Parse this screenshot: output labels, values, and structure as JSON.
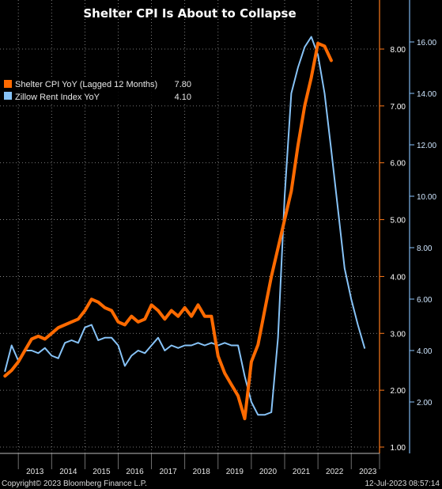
{
  "chart_data": {
    "type": "line",
    "title": "Shelter CPI Is About to Collapse",
    "footer_left": "Copyright© 2023 Bloomberg Finance L.P.",
    "footer_right": "12-Jul-2023 08:57:14",
    "x_ticks": [
      "2013",
      "2014",
      "2015",
      "2016",
      "2017",
      "2018",
      "2019",
      "2020",
      "2021",
      "2022",
      "2023"
    ],
    "left_axis": {
      "color": "#ff7a1a",
      "ylim": [
        0.9,
        8.6
      ],
      "ticks": [
        "1.00",
        "2.00",
        "3.00",
        "4.00",
        "5.00",
        "6.00",
        "7.00",
        "8.00"
      ]
    },
    "right_axis": {
      "color": "#8cc6ff",
      "ylim": [
        0.5,
        17.0
      ],
      "ticks": [
        "2.00",
        "4.00",
        "6.00",
        "8.00",
        "10.00",
        "12.00",
        "14.00",
        "16.00"
      ]
    },
    "grid": true,
    "legend": {
      "placement": "top-left"
    },
    "series": [
      {
        "name": "Shelter CPI YoY (Lagged 12 Months)",
        "value_label": "7.80",
        "color": "#ff6a00",
        "axis": "left",
        "x": [
          2012.6,
          2012.8,
          2013.0,
          2013.2,
          2013.4,
          2013.6,
          2013.8,
          2014.0,
          2014.2,
          2014.4,
          2014.6,
          2014.8,
          2015.0,
          2015.2,
          2015.4,
          2015.6,
          2015.8,
          2016.0,
          2016.2,
          2016.4,
          2016.6,
          2016.8,
          2017.0,
          2017.2,
          2017.4,
          2017.6,
          2017.8,
          2018.0,
          2018.2,
          2018.4,
          2018.6,
          2018.8,
          2019.0,
          2019.2,
          2019.4,
          2019.6,
          2019.8,
          2020.0,
          2020.2,
          2020.4,
          2020.6,
          2020.8,
          2021.0,
          2021.2,
          2021.4,
          2021.6,
          2021.8,
          2022.0,
          2022.2,
          2022.4
        ],
        "values": [
          2.25,
          2.35,
          2.5,
          2.7,
          2.9,
          2.95,
          2.9,
          3.0,
          3.1,
          3.15,
          3.2,
          3.25,
          3.4,
          3.6,
          3.55,
          3.45,
          3.4,
          3.2,
          3.15,
          3.3,
          3.2,
          3.25,
          3.5,
          3.4,
          3.25,
          3.4,
          3.3,
          3.45,
          3.3,
          3.5,
          3.3,
          3.3,
          2.6,
          2.3,
          2.1,
          1.9,
          1.5,
          2.5,
          2.8,
          3.4,
          4.0,
          4.5,
          5.0,
          5.5,
          6.3,
          7.0,
          7.5,
          8.1,
          8.05,
          7.8
        ]
      },
      {
        "name": "Zillow Rent Index YoY",
        "value_label": "4.10",
        "color": "#87c3f7",
        "axis": "right",
        "x": [
          2012.6,
          2012.8,
          2013.0,
          2013.2,
          2013.4,
          2013.6,
          2013.8,
          2014.0,
          2014.2,
          2014.4,
          2014.6,
          2014.8,
          2015.0,
          2015.2,
          2015.4,
          2015.6,
          2015.8,
          2016.0,
          2016.2,
          2016.4,
          2016.6,
          2016.8,
          2017.0,
          2017.2,
          2017.4,
          2017.6,
          2017.8,
          2018.0,
          2018.2,
          2018.4,
          2018.6,
          2018.8,
          2019.0,
          2019.2,
          2019.4,
          2019.6,
          2019.8,
          2020.0,
          2020.2,
          2020.4,
          2020.6,
          2020.8,
          2021.0,
          2021.2,
          2021.4,
          2021.6,
          2021.8,
          2022.0,
          2022.2,
          2022.4,
          2022.6,
          2022.8,
          2023.0,
          2023.2,
          2023.4
        ],
        "values": [
          3.2,
          4.2,
          3.6,
          4.0,
          4.0,
          3.9,
          4.1,
          3.8,
          3.7,
          4.3,
          4.4,
          4.3,
          4.9,
          5.0,
          4.4,
          4.5,
          4.5,
          4.2,
          3.4,
          3.8,
          4.0,
          3.9,
          4.2,
          4.5,
          4.0,
          4.2,
          4.1,
          4.2,
          4.2,
          4.3,
          4.2,
          4.3,
          4.2,
          4.3,
          4.2,
          4.2,
          3.0,
          2.0,
          1.5,
          1.5,
          1.6,
          4.5,
          10.0,
          14.0,
          15.0,
          15.8,
          16.2,
          15.5,
          14.0,
          11.8,
          9.5,
          7.2,
          6.0,
          5.0,
          4.1
        ]
      }
    ]
  }
}
